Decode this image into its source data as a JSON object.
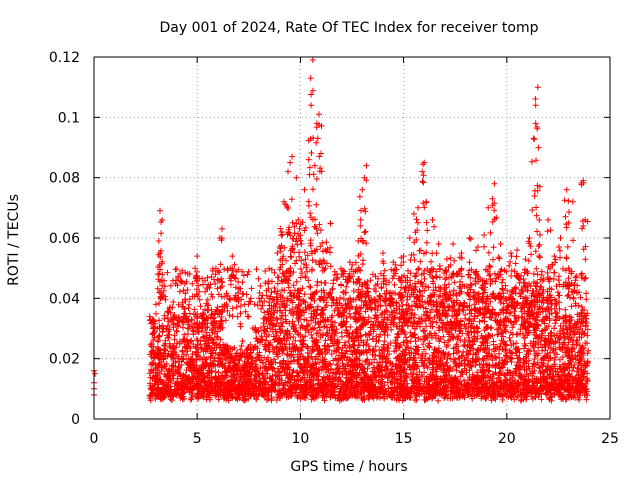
{
  "chart_data": {
    "type": "scatter",
    "title": "Day 001 of 2024, Rate Of TEC Index for receiver tomp",
    "xlabel": "GPS time / hours",
    "ylabel": "ROTI / TECUs",
    "xlim": [
      0,
      25
    ],
    "ylim": [
      0,
      0.12
    ],
    "xticks": [
      0,
      5,
      10,
      15,
      20,
      25
    ],
    "yticks": [
      0,
      0.02,
      0.04,
      0.06,
      0.08,
      0.1,
      0.12
    ],
    "xtick_labels": [
      "0",
      "5",
      "10",
      "15",
      "20",
      "25"
    ],
    "ytick_labels": [
      "0",
      "0.02",
      "0.04",
      "0.06",
      "0.08",
      "0.1",
      "0.12"
    ],
    "grid": true,
    "marker": "+",
    "series": [
      {
        "name": "ROTI",
        "color": "#ff0000",
        "points_approx": [
          [
            0.0,
            0.016
          ],
          [
            0.0,
            0.01
          ],
          [
            0.0,
            0.008
          ],
          [
            0.0,
            0.012
          ],
          [
            0.05,
            0.015
          ],
          [
            2.7,
            0.034
          ],
          [
            2.9,
            0.03
          ],
          [
            3.0,
            0.038
          ],
          [
            3.1,
            0.048
          ],
          [
            3.2,
            0.055
          ],
          [
            3.2,
            0.069
          ],
          [
            3.3,
            0.066
          ],
          [
            3.5,
            0.03
          ],
          [
            3.8,
            0.037
          ],
          [
            4.5,
            0.033
          ],
          [
            4.9,
            0.05
          ],
          [
            5.0,
            0.054
          ],
          [
            5.0,
            0.046
          ],
          [
            5.5,
            0.036
          ],
          [
            6.0,
            0.036
          ],
          [
            6.1,
            0.06
          ],
          [
            6.2,
            0.063
          ],
          [
            6.6,
            0.05
          ],
          [
            6.7,
            0.054
          ],
          [
            7.3,
            0.038
          ],
          [
            7.6,
            0.04
          ],
          [
            8.0,
            0.04
          ],
          [
            8.6,
            0.042
          ],
          [
            8.9,
            0.047
          ],
          [
            9.0,
            0.057
          ],
          [
            9.1,
            0.062
          ],
          [
            9.2,
            0.072
          ],
          [
            9.4,
            0.082
          ],
          [
            9.5,
            0.085
          ],
          [
            9.6,
            0.087
          ],
          [
            9.8,
            0.08
          ],
          [
            9.9,
            0.066
          ],
          [
            10.2,
            0.076
          ],
          [
            10.4,
            0.086
          ],
          [
            10.5,
            0.113
          ],
          [
            10.6,
            0.119
          ],
          [
            10.7,
            0.084
          ],
          [
            10.8,
            0.098
          ],
          [
            10.9,
            0.101
          ],
          [
            11.0,
            0.088
          ],
          [
            11.2,
            0.056
          ],
          [
            11.6,
            0.046
          ],
          [
            12.0,
            0.048
          ],
          [
            12.4,
            0.052
          ],
          [
            12.8,
            0.059
          ],
          [
            12.9,
            0.064
          ],
          [
            13.0,
            0.076
          ],
          [
            13.1,
            0.08
          ],
          [
            13.2,
            0.084
          ],
          [
            13.4,
            0.046
          ],
          [
            14.0,
            0.055
          ],
          [
            14.5,
            0.052
          ],
          [
            15.0,
            0.054
          ],
          [
            15.3,
            0.06
          ],
          [
            15.5,
            0.068
          ],
          [
            15.7,
            0.07
          ],
          [
            15.9,
            0.082
          ],
          [
            16.0,
            0.085
          ],
          [
            16.1,
            0.072
          ],
          [
            16.4,
            0.066
          ],
          [
            16.7,
            0.058
          ],
          [
            17.1,
            0.053
          ],
          [
            17.4,
            0.058
          ],
          [
            17.8,
            0.055
          ],
          [
            18.2,
            0.06
          ],
          [
            18.6,
            0.057
          ],
          [
            18.9,
            0.061
          ],
          [
            19.1,
            0.07
          ],
          [
            19.3,
            0.073
          ],
          [
            19.4,
            0.078
          ],
          [
            19.7,
            0.058
          ],
          [
            20.2,
            0.055
          ],
          [
            20.5,
            0.056
          ],
          [
            20.9,
            0.053
          ],
          [
            21.1,
            0.06
          ],
          [
            21.3,
            0.093
          ],
          [
            21.4,
            0.098
          ],
          [
            21.4,
            0.104
          ],
          [
            21.5,
            0.11
          ],
          [
            21.6,
            0.077
          ],
          [
            22.0,
            0.066
          ],
          [
            22.3,
            0.054
          ],
          [
            22.6,
            0.06
          ],
          [
            22.9,
            0.076
          ],
          [
            23.0,
            0.065
          ],
          [
            23.2,
            0.072
          ],
          [
            23.5,
            0.042
          ],
          [
            23.7,
            0.079
          ],
          [
            23.8,
            0.066
          ],
          [
            23.9,
            0.035
          ]
        ],
        "dense_band": {
          "x_range": [
            2.7,
            23.95
          ],
          "typical_min": 0.004,
          "typical_max": 0.035,
          "typical_center": 0.015
        }
      }
    ]
  }
}
